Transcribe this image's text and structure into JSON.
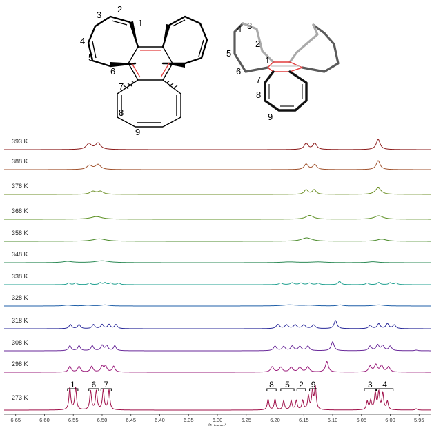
{
  "molecule_left": {
    "labels": [
      "1",
      "2",
      "3",
      "4",
      "5",
      "6",
      "7",
      "8",
      "9"
    ]
  },
  "molecule_right": {
    "labels": [
      "1",
      "2",
      "3",
      "4",
      "5",
      "6",
      "7",
      "8",
      "9"
    ]
  },
  "chart_data": {
    "type": "line",
    "title": "",
    "xlabel": "f1 (ppm)",
    "ylabel": "",
    "x_direction": "descending",
    "xlim": [
      6.67,
      5.93
    ],
    "x_ticks": [
      "6.65",
      "6.60",
      "6.55",
      "6.50",
      "6.45",
      "6.40",
      "6.35",
      "6.30",
      "6.25",
      "6.20",
      "6.15",
      "6.10",
      "6.05",
      "6.00",
      "5.95"
    ],
    "series": [
      {
        "name": "393 K",
        "color": "#8b1a1a",
        "peaks": [
          [
            6.523,
            0.55,
            0.0055
          ],
          [
            6.507,
            0.6,
            0.0055
          ],
          [
            6.146,
            0.6,
            0.004
          ],
          [
            6.131,
            0.6,
            0.004
          ],
          [
            6.021,
            1.0,
            0.004
          ]
        ]
      },
      {
        "name": "388 K",
        "color": "#a0522d",
        "peaks": [
          [
            6.522,
            0.45,
            0.0055
          ],
          [
            6.507,
            0.55,
            0.0055
          ],
          [
            6.146,
            0.6,
            0.004
          ],
          [
            6.131,
            0.55,
            0.004
          ],
          [
            6.021,
            1.0,
            0.004
          ]
        ]
      },
      {
        "name": "378 K",
        "color": "#6b8e23",
        "peaks": [
          [
            6.516,
            0.35,
            0.006
          ],
          [
            6.503,
            0.35,
            0.006
          ],
          [
            6.146,
            0.55,
            0.004
          ],
          [
            6.132,
            0.55,
            0.004
          ],
          [
            6.021,
            0.8,
            0.006
          ]
        ]
      },
      {
        "name": "368 K",
        "color": "#5b8f22",
        "peaks": [
          [
            6.51,
            0.38,
            0.012
          ],
          [
            6.14,
            0.55,
            0.008
          ],
          [
            6.02,
            0.5,
            0.009
          ]
        ]
      },
      {
        "name": "358 K",
        "color": "#4a8a2a",
        "peaks": [
          [
            6.505,
            0.4,
            0.014
          ],
          [
            6.145,
            0.55,
            0.011
          ],
          [
            6.015,
            0.35,
            0.01
          ]
        ]
      },
      {
        "name": "348 K",
        "color": "#2e8b57",
        "peaks": [
          [
            6.56,
            0.2,
            0.01
          ],
          [
            6.5,
            0.3,
            0.014
          ],
          [
            6.175,
            0.12,
            0.015
          ],
          [
            6.125,
            0.12,
            0.015
          ],
          [
            6.03,
            0.15,
            0.01
          ]
        ]
      },
      {
        "name": "338 K",
        "color": "#20a090",
        "peaks": [
          [
            6.558,
            0.3,
            0.0028
          ],
          [
            6.546,
            0.3,
            0.0028
          ],
          [
            6.522,
            0.3,
            0.0028
          ],
          [
            6.503,
            0.35,
            0.0028
          ],
          [
            6.495,
            0.35,
            0.0028
          ],
          [
            6.485,
            0.3,
            0.0028
          ],
          [
            6.471,
            0.3,
            0.0028
          ],
          [
            6.19,
            0.3,
            0.0035
          ],
          [
            6.17,
            0.35,
            0.0035
          ],
          [
            6.155,
            0.3,
            0.0035
          ],
          [
            6.14,
            0.3,
            0.0035
          ],
          [
            6.125,
            0.25,
            0.0035
          ],
          [
            6.088,
            0.6,
            0.003
          ],
          [
            6.04,
            0.3,
            0.003
          ],
          [
            6.02,
            0.4,
            0.003
          ],
          [
            6.0,
            0.35,
            0.003
          ],
          [
            5.99,
            0.3,
            0.003
          ]
        ]
      },
      {
        "name": "328 K",
        "color": "#1f5fa8",
        "peaks": [
          [
            6.56,
            0.15,
            0.008
          ],
          [
            6.525,
            0.12,
            0.008
          ],
          [
            6.495,
            0.2,
            0.008
          ],
          [
            6.175,
            0.2,
            0.015
          ],
          [
            6.14,
            0.12,
            0.012
          ],
          [
            6.087,
            0.2,
            0.005
          ],
          [
            6.02,
            0.2,
            0.01
          ]
        ]
      },
      {
        "name": "318 K",
        "color": "#2a2a9a",
        "peaks": [
          [
            6.555,
            0.5,
            0.0028
          ],
          [
            6.54,
            0.5,
            0.0028
          ],
          [
            6.515,
            0.5,
            0.0028
          ],
          [
            6.5,
            0.5,
            0.0028
          ],
          [
            6.488,
            0.5,
            0.0028
          ],
          [
            6.476,
            0.5,
            0.0028
          ],
          [
            6.195,
            0.5,
            0.0035
          ],
          [
            6.18,
            0.45,
            0.0035
          ],
          [
            6.165,
            0.45,
            0.0035
          ],
          [
            6.15,
            0.45,
            0.0035
          ],
          [
            6.133,
            0.45,
            0.0035
          ],
          [
            6.095,
            1.0,
            0.003
          ],
          [
            6.035,
            0.4,
            0.003
          ],
          [
            6.02,
            0.6,
            0.003
          ],
          [
            6.005,
            0.6,
            0.003
          ],
          [
            5.993,
            0.45,
            0.003
          ]
        ]
      },
      {
        "name": "308 K",
        "color": "#6a2a9a",
        "peaks": [
          [
            6.556,
            0.6,
            0.0027
          ],
          [
            6.54,
            0.6,
            0.0027
          ],
          [
            6.517,
            0.6,
            0.0027
          ],
          [
            6.5,
            0.65,
            0.0027
          ],
          [
            6.492,
            0.6,
            0.0027
          ],
          [
            6.478,
            0.6,
            0.0027
          ],
          [
            6.2,
            0.55,
            0.0032
          ],
          [
            6.185,
            0.5,
            0.0032
          ],
          [
            6.17,
            0.55,
            0.0032
          ],
          [
            6.157,
            0.5,
            0.0032
          ],
          [
            6.143,
            0.55,
            0.0032
          ],
          [
            6.1,
            1.1,
            0.003
          ],
          [
            6.035,
            0.55,
            0.003
          ],
          [
            6.022,
            0.7,
            0.003
          ],
          [
            6.013,
            0.6,
            0.003
          ],
          [
            6.0,
            0.55,
            0.003
          ],
          [
            5.955,
            0.08,
            0.003
          ]
        ]
      },
      {
        "name": "298 K",
        "color": "#9a1a7a",
        "peaks": [
          [
            6.556,
            0.6,
            0.0027
          ],
          [
            6.54,
            0.6,
            0.0027
          ],
          [
            6.518,
            0.6,
            0.0027
          ],
          [
            6.5,
            0.6,
            0.0027
          ],
          [
            6.494,
            0.6,
            0.0027
          ],
          [
            6.48,
            0.6,
            0.0027
          ],
          [
            6.205,
            0.55,
            0.0032
          ],
          [
            6.19,
            0.5,
            0.0032
          ],
          [
            6.172,
            0.5,
            0.0032
          ],
          [
            6.157,
            0.5,
            0.0032
          ],
          [
            6.143,
            0.55,
            0.0032
          ],
          [
            6.11,
            1.1,
            0.003
          ],
          [
            6.035,
            0.6,
            0.003
          ],
          [
            6.025,
            0.75,
            0.003
          ],
          [
            6.015,
            0.65,
            0.003
          ],
          [
            6.003,
            0.55,
            0.003
          ]
        ]
      },
      {
        "name": "273 K",
        "color": "#a0104a",
        "peaks": [
          [
            6.556,
            1.35,
            0.0018
          ],
          [
            6.546,
            1.35,
            0.0018
          ],
          [
            6.52,
            1.15,
            0.0018
          ],
          [
            6.51,
            1.15,
            0.0018
          ],
          [
            6.498,
            1.2,
            0.0018
          ],
          [
            6.488,
            1.2,
            0.0018
          ],
          [
            6.212,
            0.65,
            0.0018
          ],
          [
            6.2,
            0.65,
            0.0018
          ],
          [
            6.185,
            0.55,
            0.0018
          ],
          [
            6.172,
            0.55,
            0.0018
          ],
          [
            6.163,
            0.55,
            0.0018
          ],
          [
            6.152,
            0.55,
            0.0018
          ],
          [
            6.142,
            0.8,
            0.0018
          ],
          [
            6.135,
            1.1,
            0.0018
          ],
          [
            6.13,
            1.35,
            0.0018
          ],
          [
            6.04,
            0.5,
            0.0018
          ],
          [
            6.034,
            0.55,
            0.0018
          ],
          [
            6.026,
            1.0,
            0.0018
          ],
          [
            6.02,
            1.05,
            0.0018
          ],
          [
            6.013,
            1.0,
            0.0018
          ],
          [
            6.005,
            0.5,
            0.0018
          ],
          [
            5.955,
            0.08,
            0.002
          ]
        ]
      }
    ],
    "annotations": [
      {
        "label": "1",
        "x1": 6.56,
        "x2": 6.542
      },
      {
        "label": "6",
        "x1": 6.523,
        "x2": 6.506
      },
      {
        "label": "7",
        "x1": 6.502,
        "x2": 6.484
      },
      {
        "label": "8",
        "x1": 6.214,
        "x2": 6.198
      },
      {
        "label": "5",
        "x1": 6.19,
        "x2": 6.167
      },
      {
        "label": "2",
        "x1": 6.162,
        "x2": 6.147
      },
      {
        "label": "9",
        "x1": 6.14,
        "x2": 6.127
      },
      {
        "label": "3",
        "x1": 6.045,
        "x2": 6.025
      },
      {
        "label": "4",
        "x1": 6.024,
        "x2": 5.995
      }
    ]
  }
}
